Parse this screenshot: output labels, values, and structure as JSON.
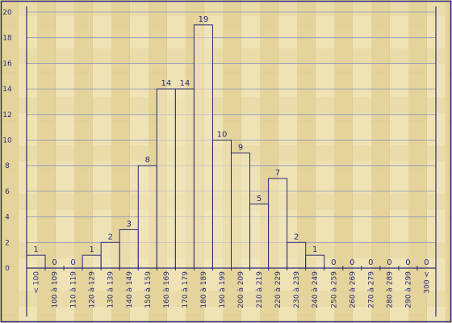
{
  "chart_data": {
    "type": "bar",
    "title": "",
    "xlabel": "",
    "ylabel": "",
    "ylim": [
      0,
      20
    ],
    "yticks": [
      0,
      2,
      4,
      6,
      8,
      10,
      12,
      14,
      16,
      18,
      20
    ],
    "grid": true,
    "legend": "none",
    "categories": [
      "< 100",
      "100 à 109",
      "110 à 119",
      "120 à 129",
      "130 à 139",
      "140 à 149",
      "150 à 159",
      "160 à 169",
      "170 à 179",
      "180 à 189",
      "190 à 199",
      "200 à 209",
      "210 à 219",
      "220 à 229",
      "230 à 239",
      "240 à 249",
      "250 à 259",
      "260 à 269",
      "270 à 279",
      "280 à 289",
      "290 à 299",
      "300 <"
    ],
    "values": [
      1,
      0,
      0,
      1,
      2,
      3,
      8,
      14,
      14,
      19,
      10,
      9,
      5,
      7,
      2,
      1,
      0,
      0,
      0,
      0,
      0,
      0
    ],
    "colors": {
      "background": "#e9dcaa",
      "bar_fill": "#f1e6bd",
      "bar_stroke": "#2b2b7a",
      "axis": "#2b2b7a",
      "grid": "#8f8fb8",
      "text": "#2b2b7a"
    }
  }
}
